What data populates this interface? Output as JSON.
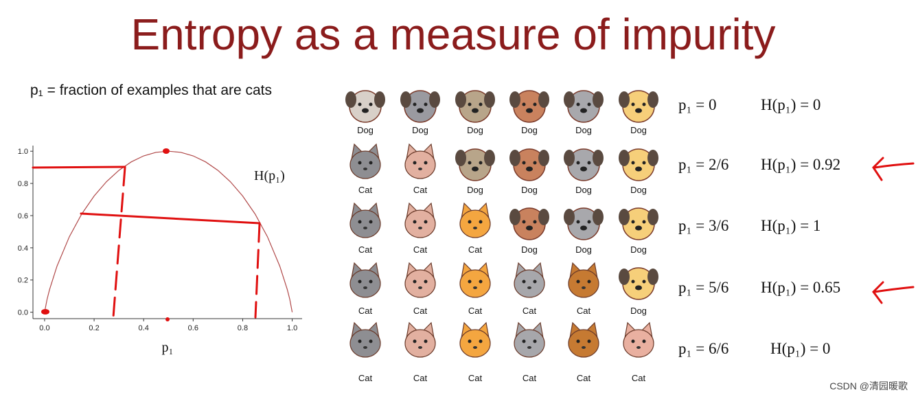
{
  "title": "Entropy as a measure of impurity",
  "definition": "p₁ = fraction of examples that are cats",
  "chart_data": {
    "type": "line",
    "x_label": "p₁",
    "series": [
      {
        "name": "H(p₁)",
        "color": "#b04848",
        "x": [
          0,
          0.01,
          0.02,
          0.05,
          0.1,
          0.15,
          0.2,
          0.25,
          0.3,
          0.35,
          0.4,
          0.45,
          0.5,
          0.55,
          0.6,
          0.65,
          0.7,
          0.75,
          0.8,
          0.85,
          0.9,
          0.95,
          0.98,
          0.99,
          1
        ],
        "values": [
          0,
          0.081,
          0.141,
          0.286,
          0.469,
          0.61,
          0.722,
          0.811,
          0.881,
          0.934,
          0.971,
          0.993,
          1,
          0.993,
          0.971,
          0.934,
          0.881,
          0.811,
          0.722,
          0.61,
          0.469,
          0.286,
          0.141,
          0.081,
          0
        ]
      }
    ],
    "xlim": [
      -0.047,
      1.04
    ],
    "ylim": [
      -0.04,
      1.035
    ],
    "xticks": [
      {
        "value": 0,
        "label": "0.0"
      },
      0.2,
      0.4,
      0.6,
      0.8,
      {
        "value": 1,
        "label": "1.0"
      }
    ],
    "yticks": [
      {
        "value": 0,
        "label": "0.0"
      },
      0.2,
      0.4,
      0.6,
      0.8,
      {
        "value": 1,
        "label": "1.0"
      }
    ]
  },
  "rows": [
    {
      "animals": [
        "Dog",
        "Dog",
        "Dog",
        "Dog",
        "Dog",
        "Dog"
      ],
      "p": "p₁ = 0",
      "h": "H(p₁) = 0"
    },
    {
      "animals": [
        "Cat",
        "Cat",
        "Dog",
        "Dog",
        "Dog",
        "Dog"
      ],
      "p": "p₁ = 2/6",
      "h": "H(p₁) = 0.92"
    },
    {
      "animals": [
        "Cat",
        "Cat",
        "Cat",
        "Dog",
        "Dog",
        "Dog"
      ],
      "p": "p₁ = 3/6",
      "h": "H(p₁) = 1"
    },
    {
      "animals": [
        "Cat",
        "Cat",
        "Cat",
        "Cat",
        "Cat",
        "Dog"
      ],
      "p": "p₁ = 5/6",
      "h": "H(p₁) = 0.65"
    },
    {
      "animals": [
        "Cat",
        "Cat",
        "Cat",
        "Cat",
        "Cat",
        "Cat"
      ],
      "p": "p₁ = 6/6",
      "h": "H(p₁) = 0"
    }
  ],
  "watermark": "CSDN @清园暖歌"
}
